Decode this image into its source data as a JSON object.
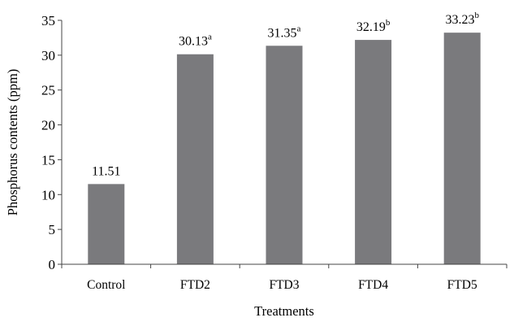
{
  "chart_data": {
    "type": "bar",
    "categories": [
      "Control",
      "FTD2",
      "FTD3",
      "FTD4",
      "FTD5"
    ],
    "values": [
      11.51,
      30.13,
      31.35,
      32.19,
      33.23
    ],
    "value_labels": [
      "11.51",
      "30.13",
      "31.35",
      "32.19",
      "33.23"
    ],
    "superscripts": [
      "",
      "a",
      "a",
      "b",
      "b"
    ],
    "title": "",
    "xlabel": "Treatments",
    "ylabel": "Phosphorus contents  (ppm)",
    "ylim": [
      0,
      35
    ],
    "yticks": [
      0,
      5,
      10,
      15,
      20,
      25,
      30,
      35
    ],
    "grid": false,
    "bar_color": "#7a7a7d"
  }
}
